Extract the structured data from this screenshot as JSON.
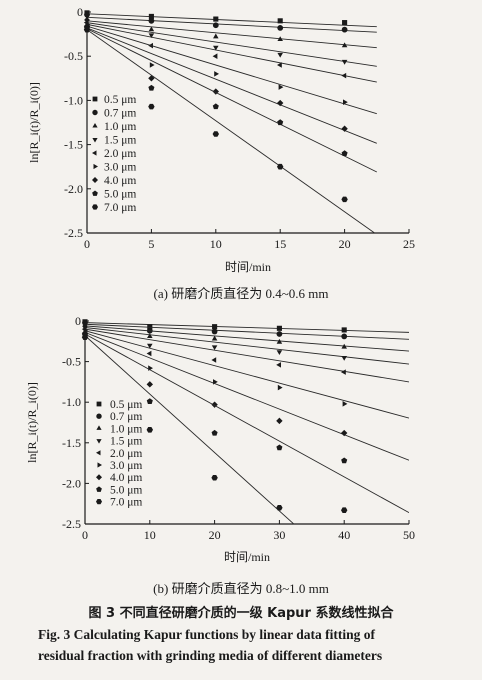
{
  "chart_data": [
    {
      "type": "scatter",
      "panel_label": "(a) 研磨介质直径为 0.4~0.6 mm",
      "xlabel": "时间/min",
      "ylabel": "ln[R_i(t)/R_i(0)]",
      "xlim": [
        0,
        25
      ],
      "ylim": [
        -2.5,
        0
      ],
      "xticks": [
        "0",
        "5",
        "10",
        "15",
        "20",
        "25"
      ],
      "yticks": [
        "0",
        "-0.5",
        "-1.0",
        "-1.5",
        "-2.0",
        "-2.5"
      ],
      "legend_position": "left-middle",
      "series": [
        {
          "name": "0.5 μm",
          "marker": "square",
          "x": [
            0,
            5,
            10,
            15,
            20
          ],
          "y": [
            -0.01,
            -0.05,
            -0.08,
            -0.1,
            -0.12
          ],
          "fit": [
            -0.02,
            -0.0065
          ]
        },
        {
          "name": "0.7 μm",
          "marker": "circle",
          "x": [
            0,
            5,
            10,
            15,
            20
          ],
          "y": [
            -0.03,
            -0.1,
            -0.15,
            -0.18,
            -0.2
          ],
          "fit": [
            -0.06,
            -0.0075
          ]
        },
        {
          "name": "1.0 μm",
          "marker": "triangle",
          "x": [
            0,
            5,
            10,
            15,
            20
          ],
          "y": [
            -0.08,
            -0.2,
            -0.28,
            -0.31,
            -0.38
          ],
          "fit": [
            -0.1,
            -0.0135
          ]
        },
        {
          "name": "1.5 μm",
          "marker": "tri-down",
          "x": [
            0,
            5,
            10,
            15,
            20
          ],
          "y": [
            -0.1,
            -0.26,
            -0.4,
            -0.48,
            -0.56
          ],
          "fit": [
            -0.12,
            -0.022
          ]
        },
        {
          "name": "2.0 μm",
          "marker": "tri-left",
          "x": [
            0,
            5,
            10,
            15,
            20
          ],
          "y": [
            -0.12,
            -0.38,
            -0.5,
            -0.6,
            -0.72
          ],
          "fit": [
            -0.14,
            -0.029
          ]
        },
        {
          "name": "3.0 μm",
          "marker": "tri-right",
          "x": [
            0,
            5,
            10,
            15,
            20
          ],
          "y": [
            -0.14,
            -0.6,
            -0.7,
            -0.85,
            -1.02
          ],
          "fit": [
            -0.16,
            -0.044
          ]
        },
        {
          "name": "4.0 μm",
          "marker": "diamond",
          "x": [
            0,
            5,
            10,
            15,
            20
          ],
          "y": [
            -0.16,
            -0.75,
            -0.9,
            -1.03,
            -1.32
          ],
          "fit": [
            -0.18,
            -0.058
          ]
        },
        {
          "name": "5.0 μm",
          "marker": "pentagon",
          "x": [
            0,
            5,
            10,
            15,
            20
          ],
          "y": [
            -0.18,
            -0.86,
            -1.07,
            -1.25,
            -1.6
          ],
          "fit": [
            -0.19,
            -0.072
          ]
        },
        {
          "name": "7.0 μm",
          "marker": "hexagon",
          "x": [
            0,
            5,
            10,
            15,
            20
          ],
          "y": [
            -0.2,
            -1.07,
            -1.38,
            -1.75,
            -2.12
          ],
          "fit": [
            -0.2,
            -0.103
          ]
        }
      ]
    },
    {
      "type": "scatter",
      "panel_label": "(b) 研磨介质直径为 0.8~1.0 mm",
      "xlabel": "时间/min",
      "ylabel": "ln[R_i(t)/R_i(0)]",
      "xlim": [
        0,
        50
      ],
      "ylim": [
        -2.5,
        0
      ],
      "xticks": [
        "0",
        "10",
        "20",
        "30",
        "40",
        "50"
      ],
      "yticks": [
        "0",
        "-0.5",
        "-1.0",
        "-1.5",
        "-2.0",
        "-2.5"
      ],
      "legend_position": "left-middle",
      "series": [
        {
          "name": "0.5 μm",
          "marker": "square",
          "x": [
            0,
            10,
            20,
            30,
            40
          ],
          "y": [
            -0.01,
            -0.07,
            -0.07,
            -0.09,
            -0.11
          ],
          "fit": [
            -0.02,
            -0.0024
          ]
        },
        {
          "name": "0.7 μm",
          "marker": "circle",
          "x": [
            0,
            10,
            20,
            30,
            40
          ],
          "y": [
            -0.02,
            -0.12,
            -0.13,
            -0.16,
            -0.19
          ],
          "fit": [
            -0.04,
            -0.0037
          ]
        },
        {
          "name": "1.0 μm",
          "marker": "triangle",
          "x": [
            0,
            10,
            20,
            30,
            40
          ],
          "y": [
            -0.05,
            -0.19,
            -0.22,
            -0.26,
            -0.32
          ],
          "fit": [
            -0.06,
            -0.0062
          ]
        },
        {
          "name": "1.5 μm",
          "marker": "tri-down",
          "x": [
            0,
            10,
            20,
            30,
            40
          ],
          "y": [
            -0.08,
            -0.3,
            -0.32,
            -0.38,
            -0.45
          ],
          "fit": [
            -0.08,
            -0.009
          ]
        },
        {
          "name": "2.0 μm",
          "marker": "tri-left",
          "x": [
            0,
            10,
            20,
            30,
            40
          ],
          "y": [
            -0.1,
            -0.4,
            -0.48,
            -0.54,
            -0.63
          ],
          "fit": [
            -0.1,
            -0.013
          ]
        },
        {
          "name": "3.0 μm",
          "marker": "tri-right",
          "x": [
            0,
            10,
            20,
            30,
            40
          ],
          "y": [
            -0.12,
            -0.58,
            -0.75,
            -0.82,
            -1.02
          ],
          "fit": [
            -0.12,
            -0.0215
          ]
        },
        {
          "name": "4.0 μm",
          "marker": "diamond",
          "x": [
            0,
            10,
            20,
            30,
            40
          ],
          "y": [
            -0.15,
            -0.78,
            -1.03,
            -1.23,
            -1.38
          ],
          "fit": [
            -0.14,
            -0.0315
          ]
        },
        {
          "name": "5.0 μm",
          "marker": "pentagon",
          "x": [
            0,
            10,
            20,
            30,
            40
          ],
          "y": [
            -0.17,
            -0.99,
            -1.38,
            -1.56,
            -1.72
          ],
          "fit": [
            -0.16,
            -0.044
          ]
        },
        {
          "name": "7.0 μm",
          "marker": "hexagon",
          "x": [
            0,
            10,
            20,
            30,
            40
          ],
          "y": [
            -0.2,
            -1.34,
            -1.93,
            -2.3,
            -2.33
          ],
          "fit": [
            -0.18,
            -0.072
          ]
        }
      ]
    }
  ],
  "caption": {
    "cn": "图 3   不同直径研磨介质的一级 Kapur 系数线性拟合",
    "en_line1": "Fig. 3   Calculating Kapur functions by linear data fitting of",
    "en_line2": "residual fraction with grinding media of different diameters"
  }
}
